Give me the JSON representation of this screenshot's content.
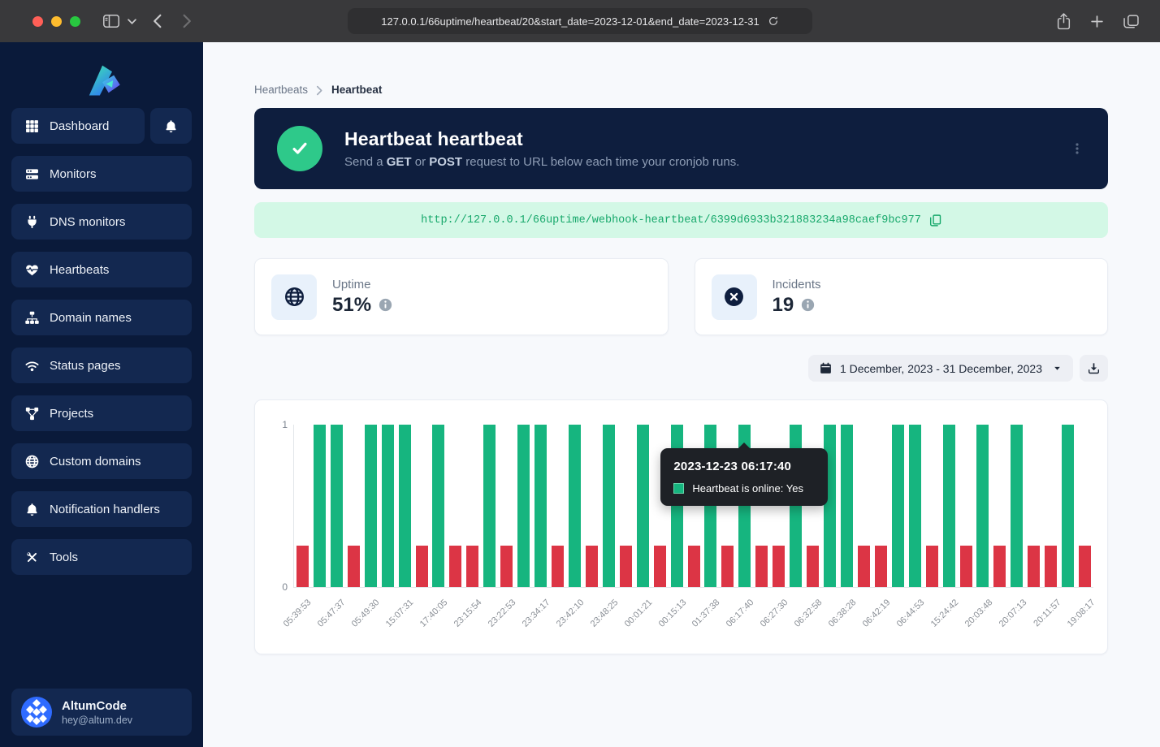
{
  "browser": {
    "url": "127.0.0.1/66uptime/heartbeat/20&start_date=2023-12-01&end_date=2023-12-31"
  },
  "sidebar": {
    "items": [
      {
        "label": "Dashboard",
        "icon": "grid"
      },
      {
        "label": "Monitors",
        "icon": "server"
      },
      {
        "label": "DNS monitors",
        "icon": "plug"
      },
      {
        "label": "Heartbeats",
        "icon": "heart-pulse"
      },
      {
        "label": "Domain names",
        "icon": "sitemap"
      },
      {
        "label": "Status pages",
        "icon": "wifi"
      },
      {
        "label": "Projects",
        "icon": "diagram"
      },
      {
        "label": "Custom domains",
        "icon": "globe"
      },
      {
        "label": "Notification handlers",
        "icon": "bell"
      },
      {
        "label": "Tools",
        "icon": "tools"
      }
    ],
    "notifications_icon": "bell",
    "user": {
      "name": "AltumCode",
      "email": "hey@altum.dev"
    }
  },
  "breadcrumb": {
    "parent": "Heartbeats",
    "current": "Heartbeat"
  },
  "hero": {
    "title": "Heartbeat heartbeat",
    "sub_prefix": "Send a ",
    "sub_get": "GET",
    "sub_mid": " or ",
    "sub_post": "POST",
    "sub_suffix": " request to URL below each time your cronjob runs."
  },
  "webhook": {
    "url": "http://127.0.0.1/66uptime/webhook-heartbeat/6399d6933b321883234a98caef9bc977"
  },
  "stats": {
    "uptime": {
      "label": "Uptime",
      "value": "51%"
    },
    "incidents": {
      "label": "Incidents",
      "value": "19"
    }
  },
  "date_filter": {
    "range_label": "1 December, 2023 - 31 December, 2023"
  },
  "chart_data": {
    "type": "bar",
    "ylim": [
      0,
      1
    ],
    "yticks": [
      "1",
      "0"
    ],
    "grid": false,
    "colors": {
      "online": "#16b57f",
      "offline": "#dc3545"
    },
    "offline_bar_ratio": 0.254,
    "tooltip": {
      "title": "2023-12-23 06:17:40",
      "text": "Heartbeat is online: Yes",
      "bar_index": 26
    },
    "bars": [
      {
        "label": "05:39:53",
        "online": false
      },
      {
        "label": "",
        "online": true
      },
      {
        "label": "05:47:37",
        "online": true
      },
      {
        "label": "",
        "online": false
      },
      {
        "label": "05:49:30",
        "online": true
      },
      {
        "label": "",
        "online": true
      },
      {
        "label": "15:07:31",
        "online": true
      },
      {
        "label": "",
        "online": false
      },
      {
        "label": "17:40:05",
        "online": true
      },
      {
        "label": "",
        "online": false
      },
      {
        "label": "23:15:54",
        "online": false
      },
      {
        "label": "",
        "online": true
      },
      {
        "label": "23:22:53",
        "online": false
      },
      {
        "label": "",
        "online": true
      },
      {
        "label": "23:34:17",
        "online": true
      },
      {
        "label": "",
        "online": false
      },
      {
        "label": "23:42:10",
        "online": true
      },
      {
        "label": "",
        "online": false
      },
      {
        "label": "23:48:25",
        "online": true
      },
      {
        "label": "",
        "online": false
      },
      {
        "label": "00:01:21",
        "online": true
      },
      {
        "label": "",
        "online": false
      },
      {
        "label": "00:15:13",
        "online": true
      },
      {
        "label": "",
        "online": false
      },
      {
        "label": "01:37:38",
        "online": true
      },
      {
        "label": "",
        "online": false
      },
      {
        "label": "06:17:40",
        "online": true
      },
      {
        "label": "",
        "online": false
      },
      {
        "label": "06:27:30",
        "online": false
      },
      {
        "label": "",
        "online": true
      },
      {
        "label": "06:32:58",
        "online": false
      },
      {
        "label": "",
        "online": true
      },
      {
        "label": "06:38:28",
        "online": true
      },
      {
        "label": "",
        "online": false
      },
      {
        "label": "06:42:19",
        "online": false
      },
      {
        "label": "",
        "online": true
      },
      {
        "label": "06:44:53",
        "online": true
      },
      {
        "label": "",
        "online": false
      },
      {
        "label": "15:24:42",
        "online": true
      },
      {
        "label": "",
        "online": false
      },
      {
        "label": "20:03:48",
        "online": true
      },
      {
        "label": "",
        "online": false
      },
      {
        "label": "20:07:13",
        "online": true
      },
      {
        "label": "",
        "online": false
      },
      {
        "label": "20:11:57",
        "online": false
      },
      {
        "label": "",
        "online": true
      },
      {
        "label": "19:08:17",
        "online": false
      }
    ]
  }
}
